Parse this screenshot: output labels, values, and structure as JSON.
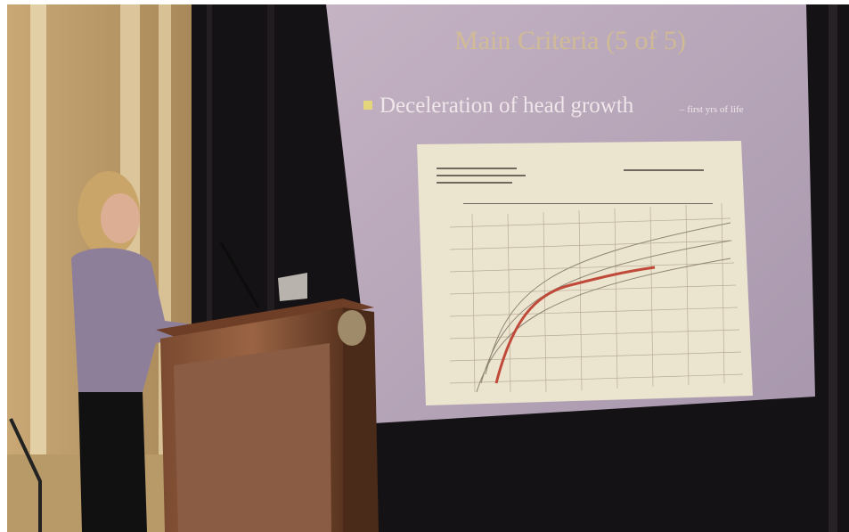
{
  "slide": {
    "title": "Main Criteria (5 of 5)",
    "bullet": "Deceleration of head growth",
    "bullet_note": "– first yrs of life"
  }
}
